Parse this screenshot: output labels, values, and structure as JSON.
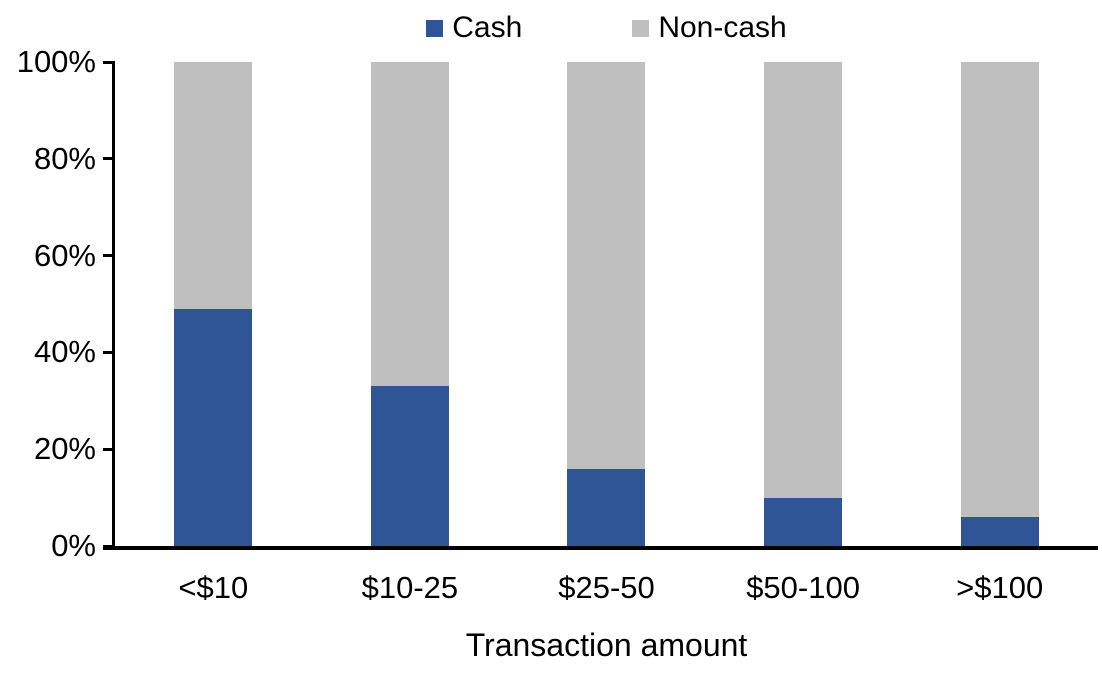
{
  "chart_data": {
    "type": "bar",
    "stacked": true,
    "percent_stacked": true,
    "title": "",
    "xlabel": "Transaction amount",
    "ylabel": "",
    "categories": [
      "<$10",
      "$10-25",
      "$25-50",
      "$50-100",
      ">$100"
    ],
    "series": [
      {
        "name": "Cash",
        "color": "#2F5597",
        "values": [
          49,
          33,
          16,
          10,
          6
        ]
      },
      {
        "name": "Non-cash",
        "color": "#BFBFBF",
        "values": [
          51,
          67,
          84,
          90,
          94
        ]
      }
    ],
    "ylim": [
      0,
      100
    ],
    "ytick_labels": [
      "0%",
      "20%",
      "40%",
      "60%",
      "80%",
      "100%"
    ],
    "ytick_values": [
      0,
      20,
      40,
      60,
      80,
      100
    ],
    "grid": false,
    "legend_position": "top-center",
    "axis_color": "#000000",
    "text_color": "#000000",
    "background_color": "#FFFFFF"
  }
}
